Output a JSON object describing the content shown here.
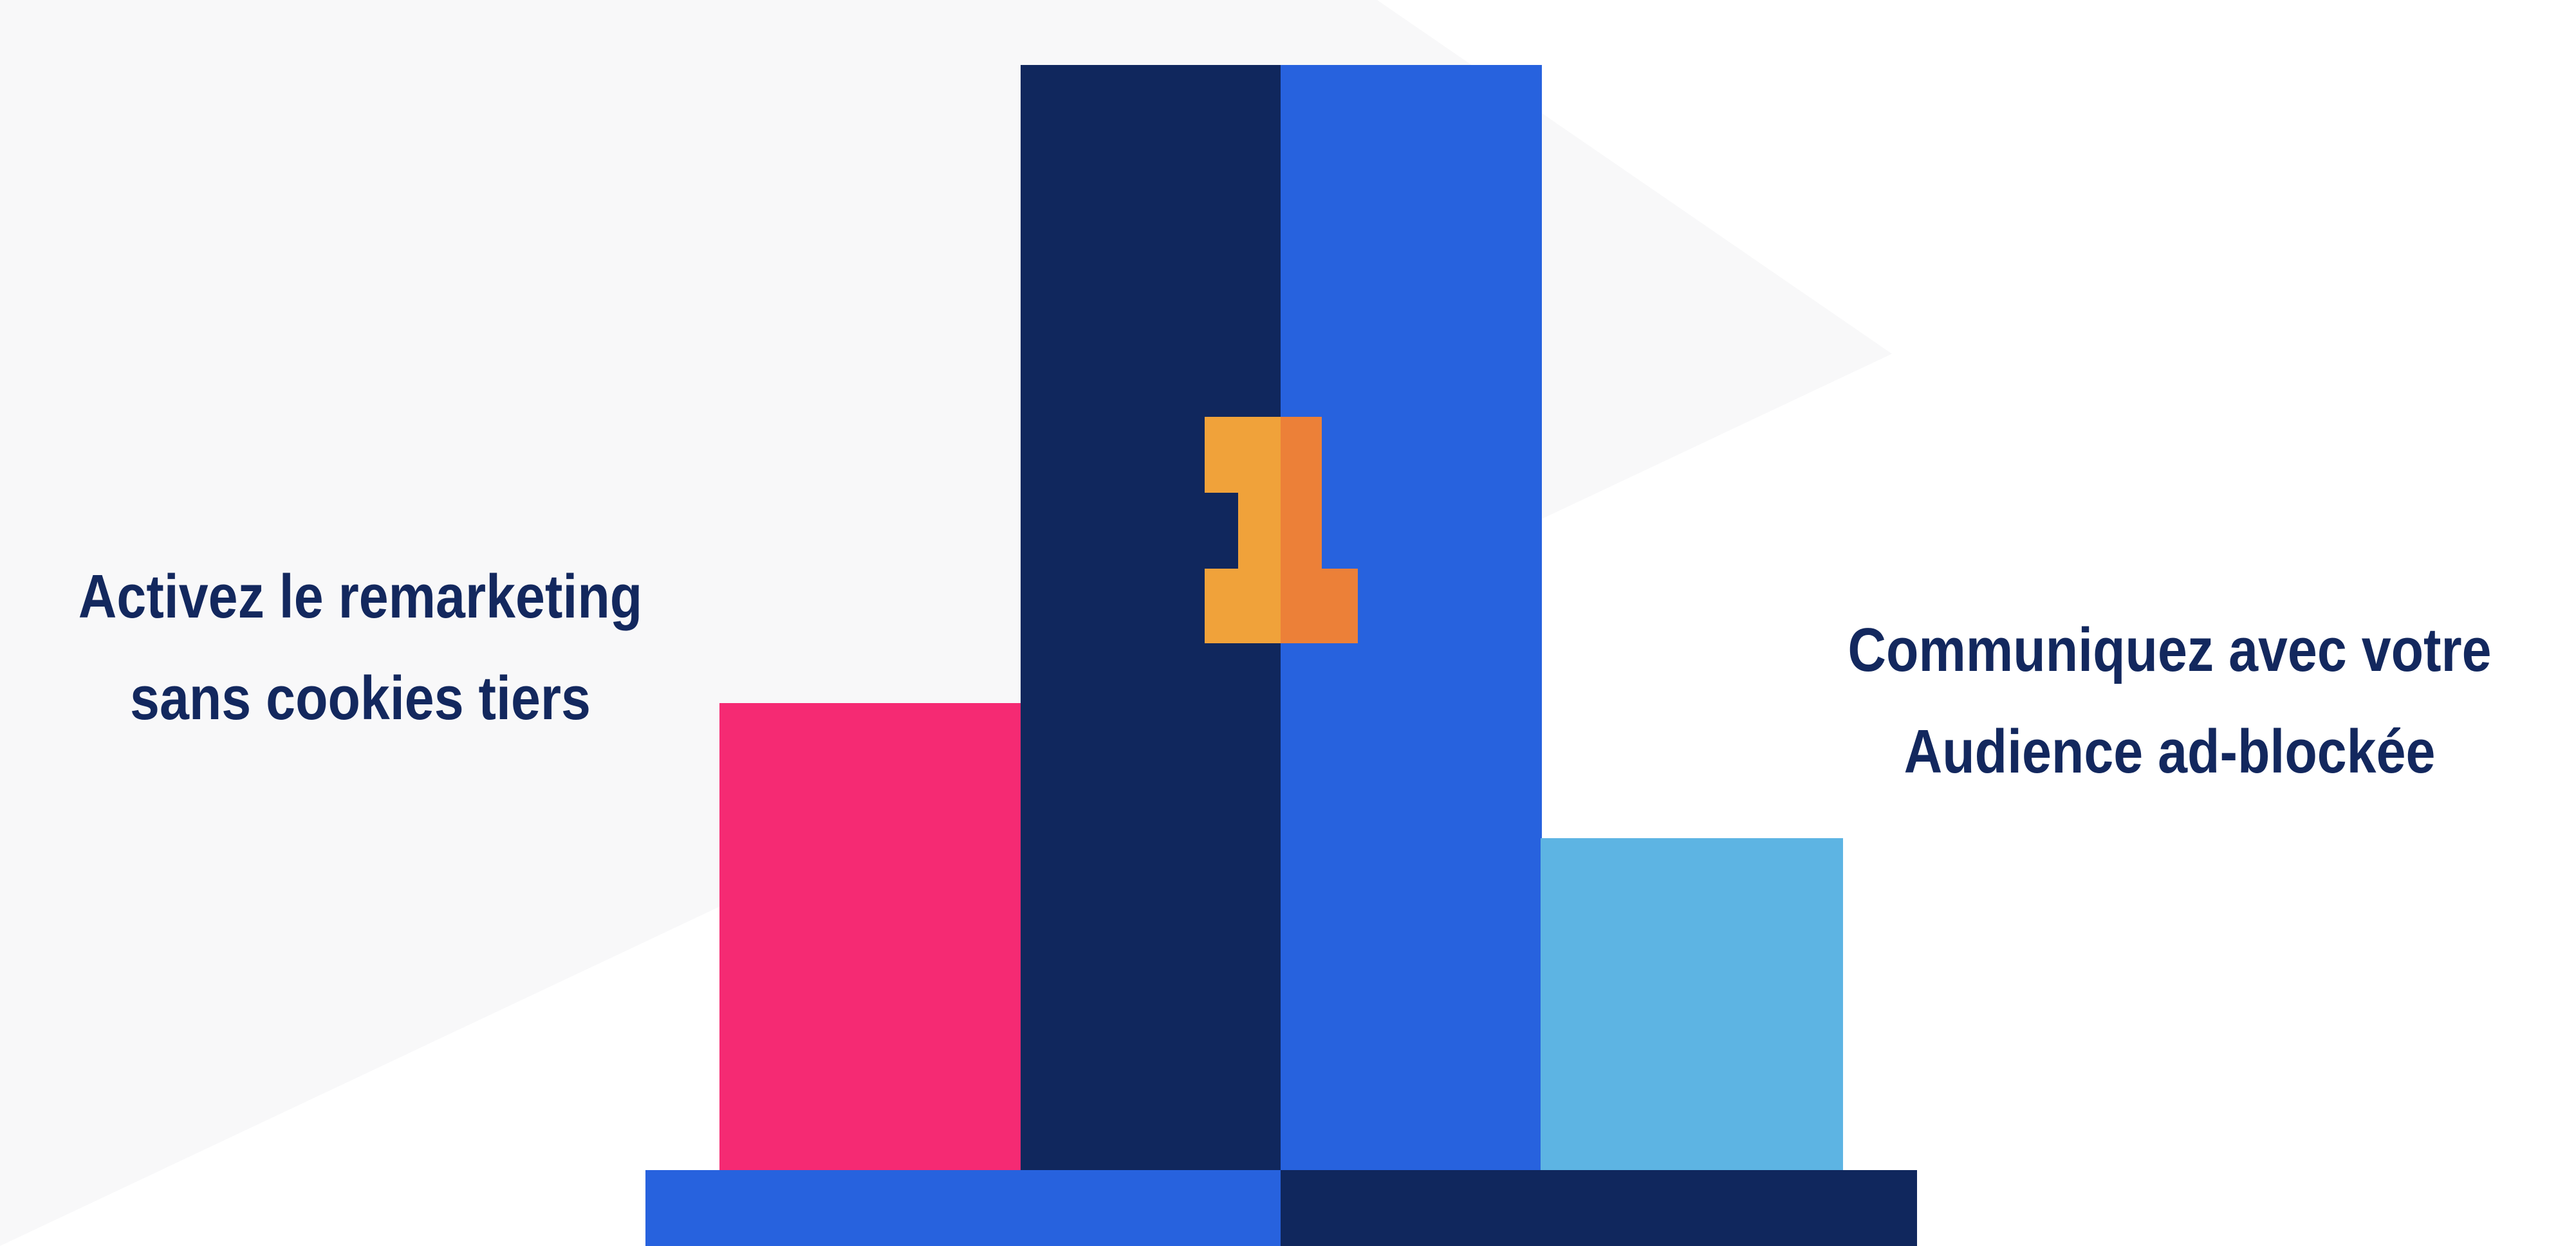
{
  "colors": {
    "background": "#ffffff",
    "background_shape": "#f8f8f9",
    "text": "#13285e",
    "pink": "#f52a73",
    "navy": "#10275d",
    "blue": "#2762de",
    "light_blue": "#5db4e3",
    "orange_light": "#f0a23a",
    "orange_dark": "#ec8038"
  },
  "podium": {
    "first_place_number": "1"
  },
  "left_label": {
    "line1": "Activez le remarketing",
    "line2": "sans cookies tiers"
  },
  "right_label": {
    "line1": "Communiquez avec votre",
    "line2": "Audience ad-blockée"
  }
}
